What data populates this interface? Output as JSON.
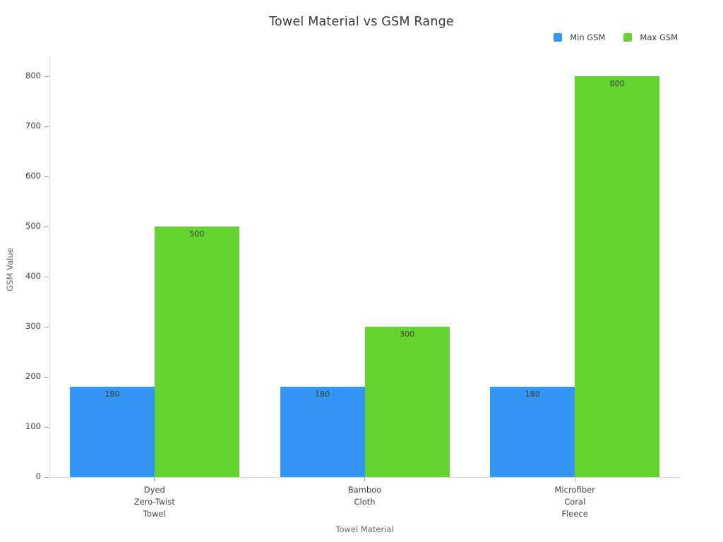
{
  "chart_data": {
    "type": "bar",
    "title": "Towel Material vs GSM Range",
    "xlabel": "Towel Material",
    "ylabel": "GSM Value",
    "categories": [
      [
        "Dyed",
        "Zero-Twist",
        "Towel"
      ],
      [
        "Bamboo",
        "Cloth"
      ],
      [
        "Microfiber",
        "Coral",
        "Fleece"
      ]
    ],
    "series": [
      {
        "name": "Min GSM",
        "color": "#3396f5",
        "values": [
          180,
          180,
          180
        ]
      },
      {
        "name": "Max GSM",
        "color": "#65d32f",
        "values": [
          500,
          300,
          800
        ]
      }
    ],
    "ylim": [
      0,
      800
    ],
    "ytick_step": 100,
    "grid": false,
    "legend_position": "top-right",
    "bar_value_labels": true
  },
  "colors": {
    "axis_line": "#d9d9d9",
    "tick_mark": "#999999",
    "text_dark": "#3d3d3d",
    "text_muted": "#666666"
  }
}
